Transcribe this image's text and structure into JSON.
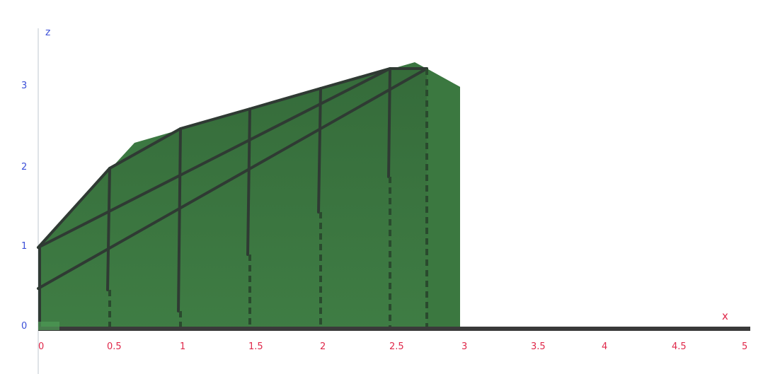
{
  "axes": {
    "x_name": "x",
    "z_name": "z",
    "x_ticks": [
      "0",
      "0.5",
      "1",
      "1.5",
      "2",
      "2.5",
      "3",
      "3.5",
      "4",
      "4.5",
      "5"
    ],
    "z_ticks": [
      "0",
      "1",
      "2",
      "3"
    ]
  },
  "colors": {
    "solid_fill": "#3f7a45",
    "solid_top": "#3a7640",
    "solid_side": "#3b783f",
    "rod": "#2f3a33",
    "axis_x": "#e0284a",
    "axis_z": "#3b4fd8"
  }
}
